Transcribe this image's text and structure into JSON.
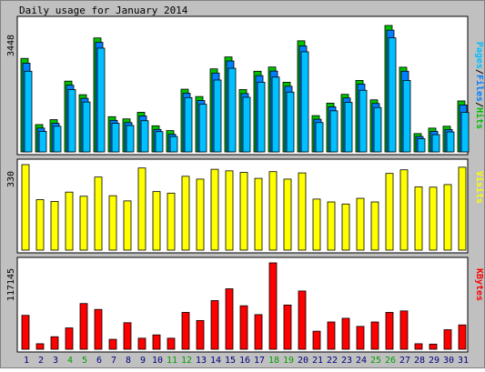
{
  "chart_data": {
    "type": "bar",
    "title": "Daily usage for January 2014",
    "categories": [
      "1",
      "2",
      "3",
      "4",
      "5",
      "6",
      "7",
      "8",
      "9",
      "10",
      "11",
      "12",
      "13",
      "14",
      "15",
      "16",
      "17",
      "18",
      "19",
      "20",
      "21",
      "22",
      "23",
      "24",
      "25",
      "26",
      "27",
      "28",
      "29",
      "30",
      "31"
    ],
    "weekend_days": [
      "4",
      "5",
      "11",
      "12",
      "18",
      "19",
      "25",
      "26"
    ],
    "colors": {
      "hits": "#00c000",
      "files": "#0080ff",
      "pages": "#00c0ff",
      "visits": "#ffff00",
      "kbytes": "#ff0000",
      "weekend_label": "#00a000",
      "weekday_label": "#000080"
    },
    "panels": [
      {
        "id": "hits-files-pages",
        "legend": [
          {
            "text": "Pages",
            "color": "#00c0ff"
          },
          {
            "text": "/",
            "color": "#000000"
          },
          {
            "text": "Files",
            "color": "#0080ff"
          },
          {
            "text": "/",
            "color": "#000000"
          },
          {
            "text": "Hits",
            "color": "#00c000"
          }
        ],
        "max_label": "3448",
        "max": 3448,
        "series": [
          {
            "name": "Hits",
            "values": [
              2550,
              745,
              880,
              1930,
              1560,
              3108,
              960,
              900,
              1080,
              712,
              580,
              1710,
              1510,
              2265,
              2590,
              1700,
              2200,
              2315,
              1900,
              3030,
              990,
              1330,
              1570,
              1950,
              1420,
              3448,
              2310,
              500,
              648,
              700,
              1390
            ]
          },
          {
            "name": "Files",
            "values": [
              2420,
              650,
              780,
              1820,
              1460,
              2990,
              860,
              800,
              980,
              612,
              480,
              1600,
              1400,
              2150,
              2480,
              1590,
              2080,
              2205,
              1790,
              2890,
              890,
              1230,
              1470,
              1850,
              1320,
              3320,
              2200,
              420,
              560,
              610,
              1280
            ]
          },
          {
            "name": "Pages",
            "values": [
              2200,
              560,
              700,
              1700,
              1360,
              2830,
              780,
              720,
              850,
              552,
              420,
              1480,
              1300,
              1960,
              2280,
              1490,
              1900,
              2040,
              1630,
              2730,
              800,
              1120,
              1350,
              1680,
              1210,
              3110,
              1950,
              360,
              470,
              545,
              1080
            ]
          }
        ]
      },
      {
        "id": "visits",
        "legend": [
          {
            "text": "Visits",
            "color": "#ffff00"
          }
        ],
        "max_label": "330",
        "max": 330,
        "series": [
          {
            "name": "Visits",
            "values": [
              330,
              195,
              188,
              224,
              208,
              282,
              210,
              190,
              317,
              226,
              220,
              285,
              274,
              312,
              306,
              300,
              277,
              303,
              274,
              298,
              197,
              186,
              178,
              200,
              186,
              296,
              310,
              244,
              243,
              253,
              320
            ]
          }
        ]
      },
      {
        "id": "kbytes",
        "legend": [
          {
            "text": "KBytes",
            "color": "#ff0000"
          }
        ],
        "max_label": "117145",
        "max": 117145,
        "series": [
          {
            "name": "KBytes",
            "values": [
              46000,
              7500,
              17000,
              29000,
              62000,
              54000,
              13500,
              36000,
              15000,
              19500,
              15000,
              50000,
              39000,
              66000,
              82000,
              59000,
              47000,
              117145,
              60000,
              79000,
              24500,
              37000,
              42000,
              31000,
              37000,
              50000,
              52000,
              7500,
              7000,
              26500,
              33000
            ]
          }
        ]
      }
    ]
  }
}
